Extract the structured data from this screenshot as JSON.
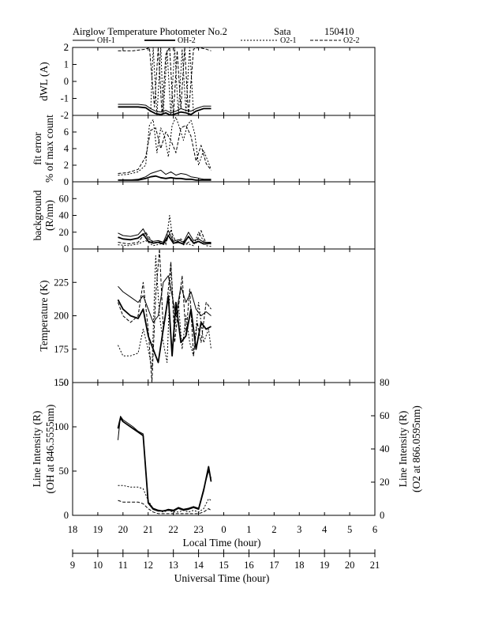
{
  "header": {
    "title": "Airglow Temperature Photometer No.2",
    "station": "Sata",
    "date": "150410"
  },
  "legend": [
    {
      "label": "OH-1",
      "dash": "solid",
      "width": 1.0
    },
    {
      "label": "OH-2",
      "dash": "solid",
      "width": 1.8
    },
    {
      "label": "O2-1",
      "dash": "dotted",
      "width": 1.0
    },
    {
      "label": "O2-2",
      "dash": "dashed",
      "width": 1.0
    }
  ],
  "axes": {
    "lt_label": "Local Time (hour)",
    "ut_label": "Universal Time (hour)",
    "lt_ticks": [
      "18",
      "19",
      "20",
      "21",
      "22",
      "23",
      "0",
      "1",
      "2",
      "3",
      "4",
      "5",
      "6"
    ],
    "ut_ticks": [
      "9",
      "10",
      "11",
      "12",
      "13",
      "14",
      "15",
      "16",
      "17",
      "18",
      "19",
      "20",
      "21"
    ]
  },
  "chart_data": [
    {
      "type": "line",
      "panel": "dwl",
      "ylabel": "dWL (A)",
      "ylim": [
        -2,
        2
      ],
      "yticks": [
        -2,
        -1,
        0,
        1,
        2
      ],
      "x_axis": "Local Time (hour)",
      "series": [
        {
          "name": "OH-1",
          "x": [
            19.8,
            20.2,
            20.6,
            20.9,
            21.1,
            21.3,
            21.5,
            21.7,
            21.9,
            22.1,
            22.3,
            22.5,
            22.7,
            22.9,
            23.2,
            23.5
          ],
          "values": [
            -1.35,
            -1.35,
            -1.35,
            -1.4,
            -1.6,
            -1.75,
            -1.8,
            -1.7,
            -1.85,
            -1.75,
            -1.6,
            -1.7,
            -1.75,
            -1.6,
            -1.45,
            -1.45
          ]
        },
        {
          "name": "OH-2",
          "x": [
            19.8,
            20.2,
            20.6,
            20.9,
            21.1,
            21.3,
            21.5,
            21.7,
            21.9,
            22.1,
            22.3,
            22.5,
            22.7,
            22.9,
            23.2,
            23.5
          ],
          "values": [
            -1.5,
            -1.5,
            -1.5,
            -1.55,
            -1.75,
            -1.9,
            -1.95,
            -1.85,
            -2.0,
            -1.9,
            -1.8,
            -1.85,
            -1.95,
            -1.75,
            -1.6,
            -1.6
          ]
        },
        {
          "name": "O2-1",
          "x": [
            21.1,
            21.2,
            21.35,
            21.5,
            21.6,
            21.75,
            21.9,
            22.05,
            22.2,
            22.35,
            22.5,
            22.65,
            22.8
          ],
          "values": [
            -1.8,
            2,
            -2,
            2,
            -1.9,
            1.8,
            -2,
            2,
            -2,
            1.9,
            -1.8,
            2,
            -1.9
          ]
        },
        {
          "name": "O2-2",
          "x": [
            19.8,
            20.4,
            20.9,
            21.05,
            21.25,
            21.4,
            21.55,
            21.7,
            21.85,
            22.0,
            22.15,
            22.3,
            22.45,
            22.6,
            22.8,
            23.0,
            23.3,
            23.5
          ],
          "values": [
            1.8,
            1.8,
            1.9,
            2,
            -1.5,
            2,
            -2,
            1.6,
            2,
            -2,
            1.8,
            -1.6,
            2,
            -2,
            1.9,
            2,
            1.9,
            1.8
          ]
        }
      ]
    },
    {
      "type": "line",
      "panel": "fit_error",
      "ylabel": "fit error",
      "ylabel2": "% of max count",
      "ylim": [
        0,
        8
      ],
      "yticks": [
        0,
        2,
        4,
        6
      ],
      "x_axis": "Local Time (hour)",
      "series": [
        {
          "name": "OH-1",
          "x": [
            19.8,
            20.2,
            20.6,
            20.9,
            21.1,
            21.3,
            21.5,
            21.7,
            21.9,
            22.1,
            22.3,
            22.5,
            22.7,
            22.9,
            23.2,
            23.5
          ],
          "values": [
            0.2,
            0.2,
            0.3,
            0.6,
            1.0,
            1.2,
            1.4,
            0.9,
            1.2,
            0.8,
            1.0,
            0.9,
            0.6,
            0.5,
            0.3,
            0.3
          ]
        },
        {
          "name": "OH-2",
          "x": [
            19.8,
            20.2,
            20.6,
            20.9,
            21.1,
            21.3,
            21.5,
            21.7,
            21.9,
            22.1,
            22.3,
            22.5,
            22.7,
            22.9,
            23.2,
            23.5
          ],
          "values": [
            0.2,
            0.2,
            0.2,
            0.4,
            0.6,
            0.7,
            0.5,
            0.4,
            0.5,
            0.4,
            0.4,
            0.3,
            0.3,
            0.2,
            0.2,
            0.2
          ]
        },
        {
          "name": "O2-1",
          "x": [
            19.8,
            20.2,
            20.6,
            20.9,
            21.05,
            21.2,
            21.35,
            21.5,
            21.65,
            21.8,
            21.95,
            22.1,
            22.25,
            22.4,
            22.55,
            22.7,
            22.85,
            23.0,
            23.2,
            23.5
          ],
          "values": [
            0.8,
            0.9,
            1.2,
            2.0,
            6.8,
            7.5,
            3.5,
            6.5,
            5.5,
            3.0,
            6.8,
            7.8,
            6.5,
            5.0,
            6.8,
            7.4,
            5.8,
            2.0,
            3.8,
            1.5
          ]
        },
        {
          "name": "O2-2",
          "x": [
            19.8,
            20.2,
            20.6,
            20.9,
            21.1,
            21.3,
            21.5,
            21.7,
            21.9,
            22.1,
            22.3,
            22.5,
            22.7,
            22.9,
            23.1,
            23.3,
            23.5
          ],
          "values": [
            1.0,
            1.1,
            1.5,
            3.0,
            6.2,
            6.5,
            4.0,
            6.0,
            5.0,
            3.5,
            6.5,
            6.8,
            5.5,
            2.5,
            4.4,
            2.2,
            1.4
          ]
        }
      ]
    },
    {
      "type": "line",
      "panel": "background",
      "ylabel": "background",
      "ylabel2": "(R/nm)",
      "ylim": [
        0,
        80
      ],
      "yticks": [
        0,
        20,
        40,
        60
      ],
      "x_axis": "Local Time (hour)",
      "series": [
        {
          "name": "OH-1",
          "x": [
            19.8,
            20.0,
            20.3,
            20.6,
            20.8,
            21.0,
            21.2,
            21.4,
            21.6,
            21.8,
            22.0,
            22.2,
            22.4,
            22.6,
            22.8,
            23.0,
            23.2,
            23.5
          ],
          "values": [
            19,
            16,
            15,
            17,
            24,
            12,
            9,
            10,
            8,
            22,
            9,
            11,
            8,
            20,
            10,
            12,
            8,
            8
          ]
        },
        {
          "name": "OH-2",
          "x": [
            19.8,
            20.0,
            20.3,
            20.6,
            20.8,
            21.0,
            21.2,
            21.4,
            21.6,
            21.8,
            22.0,
            22.2,
            22.4,
            22.6,
            22.8,
            23.0,
            23.2,
            23.5
          ],
          "values": [
            14,
            12,
            11,
            13,
            18,
            9,
            7,
            8,
            6,
            16,
            7,
            8,
            6,
            15,
            7,
            9,
            6,
            7
          ]
        },
        {
          "name": "O2-1",
          "x": [
            19.8,
            20.2,
            20.6,
            20.9,
            21.2,
            21.5,
            21.7,
            21.85,
            22.0,
            22.2,
            22.4,
            22.6,
            22.8,
            23.0,
            23.3,
            23.5
          ],
          "values": [
            5,
            4,
            6,
            10,
            4,
            6,
            5,
            40,
            6,
            9,
            5,
            6,
            4,
            20,
            4,
            3
          ]
        },
        {
          "name": "O2-2",
          "x": [
            19.8,
            20.2,
            20.6,
            20.9,
            21.2,
            21.5,
            21.7,
            21.9,
            22.1,
            22.3,
            22.5,
            22.7,
            22.9,
            23.1,
            23.3,
            23.5
          ],
          "values": [
            8,
            6,
            8,
            20,
            7,
            9,
            7,
            22,
            8,
            12,
            6,
            10,
            7,
            22,
            6,
            6
          ]
        }
      ]
    },
    {
      "type": "line",
      "panel": "temperature",
      "ylabel": "Temperature (K)",
      "ylim": [
        150,
        250
      ],
      "yticks": [
        150,
        175,
        200,
        225
      ],
      "x_axis": "Local Time (hour)",
      "series": [
        {
          "name": "OH-1",
          "x": [
            19.8,
            20.0,
            20.3,
            20.6,
            20.8,
            21.0,
            21.2,
            21.4,
            21.6,
            21.8,
            21.95,
            22.1,
            22.3,
            22.5,
            22.7,
            22.9,
            23.1,
            23.3,
            23.5
          ],
          "values": [
            222,
            218,
            214,
            210,
            215,
            205,
            195,
            200,
            225,
            230,
            215,
            200,
            222,
            210,
            218,
            205,
            200,
            203,
            200
          ]
        },
        {
          "name": "OH-2",
          "x": [
            19.8,
            20.0,
            20.3,
            20.6,
            20.8,
            21.0,
            21.2,
            21.4,
            21.6,
            21.8,
            21.95,
            22.1,
            22.3,
            22.5,
            22.7,
            22.9,
            23.1,
            23.3,
            23.5
          ],
          "values": [
            212,
            205,
            200,
            198,
            205,
            185,
            175,
            165,
            190,
            215,
            170,
            210,
            180,
            185,
            205,
            175,
            195,
            190,
            192
          ]
        },
        {
          "name": "O2-1",
          "x": [
            19.8,
            20.0,
            20.3,
            20.6,
            20.8,
            21.0,
            21.15,
            21.3,
            21.45,
            21.6,
            21.75,
            21.9,
            22.05,
            22.2,
            22.35,
            22.5,
            22.65,
            22.8,
            23.0,
            23.2,
            23.4,
            23.5
          ],
          "values": [
            178,
            170,
            170,
            172,
            190,
            175,
            160,
            245,
            200,
            180,
            165,
            240,
            190,
            210,
            175,
            200,
            180,
            170,
            210,
            180,
            190,
            175
          ]
        },
        {
          "name": "O2-2",
          "x": [
            19.8,
            20.0,
            20.3,
            20.6,
            20.8,
            21.0,
            21.15,
            21.3,
            21.45,
            21.6,
            21.75,
            21.9,
            22.05,
            22.2,
            22.35,
            22.5,
            22.65,
            22.8,
            22.95,
            23.1,
            23.3,
            23.5
          ],
          "values": [
            210,
            200,
            195,
            200,
            225,
            190,
            150,
            215,
            250,
            190,
            210,
            240,
            180,
            205,
            230,
            185,
            220,
            170,
            195,
            180,
            210,
            205
          ]
        }
      ]
    },
    {
      "type": "line",
      "panel": "intensity",
      "ylabel": "Line Intensity (R)",
      "ylabel2": "(OH at 846.5555nm)",
      "ylabel_right": "Line Intensity (R)",
      "ylabel_right2": "(O2 at 866.0595nm)",
      "ylim": [
        0,
        150
      ],
      "yticks": [
        0,
        50,
        100,
        150
      ],
      "ylim_right": [
        0,
        80
      ],
      "yticks_right": [
        0,
        20,
        40,
        60,
        80
      ],
      "x_axis": "Local Time (hour)",
      "series": [
        {
          "name": "OH-1",
          "axis": "left",
          "x": [
            19.8,
            19.9,
            20.0,
            20.2,
            20.4,
            20.6,
            20.8,
            21.0,
            21.2,
            21.4,
            21.6,
            21.8,
            22.0,
            22.2,
            22.4,
            22.6,
            22.8,
            23.0,
            23.2,
            23.4,
            23.5
          ],
          "values": [
            85,
            112,
            108,
            104,
            100,
            95,
            92,
            15,
            8,
            6,
            5,
            7,
            6,
            9,
            7,
            8,
            10,
            8,
            30,
            50,
            42
          ]
        },
        {
          "name": "OH-2",
          "axis": "left",
          "x": [
            19.8,
            19.9,
            20.0,
            20.2,
            20.4,
            20.6,
            20.8,
            21.0,
            21.2,
            21.4,
            21.6,
            21.8,
            22.0,
            22.2,
            22.4,
            22.6,
            22.8,
            23.0,
            23.2,
            23.4,
            23.5
          ],
          "values": [
            98,
            110,
            106,
            102,
            98,
            94,
            90,
            14,
            7,
            5,
            5,
            6,
            5,
            8,
            6,
            7,
            9,
            7,
            28,
            55,
            38
          ]
        },
        {
          "name": "O2-1",
          "axis": "right",
          "x": [
            19.8,
            20.0,
            20.3,
            20.6,
            20.8,
            21.0,
            21.2,
            21.4,
            21.6,
            21.8,
            22.0,
            22.2,
            22.4,
            22.6,
            22.8,
            23.0,
            23.2,
            23.4,
            23.5
          ],
          "values": [
            18,
            18,
            17,
            17,
            16,
            9,
            4,
            3,
            2,
            3,
            2,
            2,
            3,
            2,
            3,
            2,
            4,
            10,
            9
          ]
        },
        {
          "name": "O2-2",
          "axis": "right",
          "x": [
            19.8,
            20.0,
            20.3,
            20.6,
            20.8,
            21.0,
            21.2,
            21.4,
            21.6,
            21.8,
            22.0,
            22.2,
            22.4,
            22.6,
            22.8,
            23.0,
            23.2,
            23.4,
            23.5
          ],
          "values": [
            9,
            8,
            8,
            8,
            7,
            4,
            2,
            1,
            1,
            1,
            1,
            1,
            1,
            1,
            1,
            1,
            2,
            4,
            3
          ]
        }
      ]
    }
  ]
}
